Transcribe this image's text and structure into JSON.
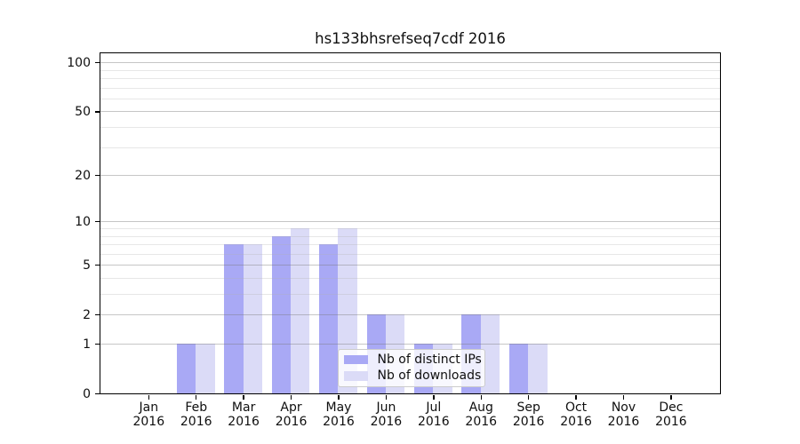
{
  "chart_data": {
    "type": "bar",
    "title": "hs133bhsrefseq7cdf 2016",
    "categories": [
      "Jan",
      "Feb",
      "Mar",
      "Apr",
      "May",
      "Jun",
      "Jul",
      "Aug",
      "Sep",
      "Oct",
      "Nov",
      "Dec"
    ],
    "x_sublabel_year": "2016",
    "series": [
      {
        "name": "Nb of distinct IPs",
        "color": "#a9a9f5",
        "values": [
          0,
          1,
          7,
          8,
          7,
          2,
          1,
          2,
          1,
          0,
          0,
          0
        ]
      },
      {
        "name": "Nb of downloads",
        "color": "#dbdbf7",
        "values": [
          0,
          1,
          7,
          9,
          9,
          2,
          1,
          2,
          1,
          0,
          0,
          0
        ]
      }
    ],
    "y_scale": "log1p",
    "y_ticks": [
      0,
      1,
      2,
      5,
      10,
      20,
      50,
      100
    ],
    "y_minor_gridlines": [
      3,
      4,
      6,
      7,
      8,
      9,
      30,
      40,
      60,
      70,
      80,
      90
    ],
    "ylim": [
      0,
      114
    ],
    "grid": true,
    "legend_position": "lower-center"
  },
  "colors": {
    "spine": "#000000",
    "major_grid": "#c9c9c9",
    "minor_grid": "#ececec",
    "background": "#ffffff",
    "text": "#0f0f0f"
  }
}
